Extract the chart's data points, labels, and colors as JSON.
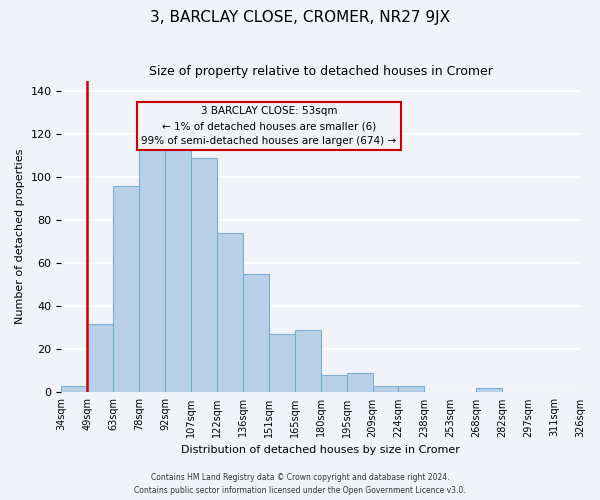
{
  "title": "3, BARCLAY CLOSE, CROMER, NR27 9JX",
  "subtitle": "Size of property relative to detached houses in Cromer",
  "xlabel": "Distribution of detached houses by size in Cromer",
  "ylabel": "Number of detached properties",
  "footer_line1": "Contains HM Land Registry data © Crown copyright and database right 2024.",
  "footer_line2": "Contains public sector information licensed under the Open Government Licence v3.0.",
  "bin_labels": [
    "34sqm",
    "49sqm",
    "63sqm",
    "78sqm",
    "92sqm",
    "107sqm",
    "122sqm",
    "136sqm",
    "151sqm",
    "165sqm",
    "180sqm",
    "195sqm",
    "209sqm",
    "224sqm",
    "238sqm",
    "253sqm",
    "268sqm",
    "282sqm",
    "297sqm",
    "311sqm",
    "326sqm"
  ],
  "bar_values": [
    3,
    32,
    96,
    113,
    113,
    109,
    74,
    55,
    27,
    29,
    8,
    9,
    3,
    3,
    0,
    0,
    2,
    0,
    0,
    0
  ],
  "bar_color": "#b8d0e8",
  "bar_edge_color": "#7aafd4",
  "red_line_x": 1,
  "annotation_text_line1": "3 BARCLAY CLOSE: 53sqm",
  "annotation_text_line2": "← 1% of detached houses are smaller (6)",
  "annotation_text_line3": "99% of semi-detached houses are larger (674) →",
  "annotation_box_color": "#cc0000",
  "ylim": [
    0,
    145
  ],
  "yticks": [
    0,
    20,
    40,
    60,
    80,
    100,
    120,
    140
  ],
  "background_color": "#f0f4f8",
  "grid_color": "#ffffff"
}
